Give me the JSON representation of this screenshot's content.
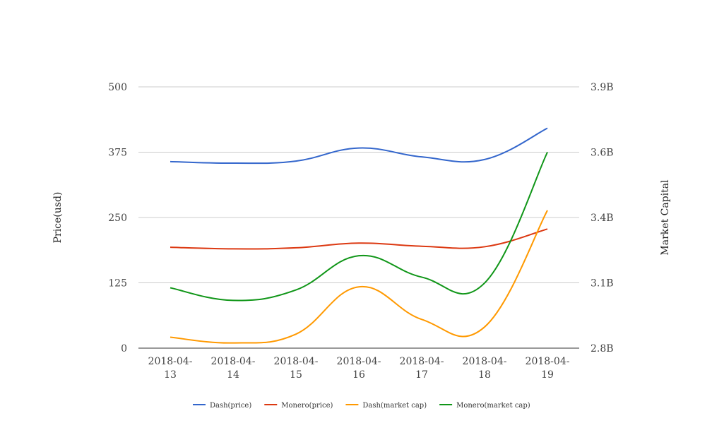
{
  "chart_data": {
    "type": "line",
    "categories": [
      "2018-04-13",
      "2018-04-14",
      "2018-04-15",
      "2018-04-16",
      "2018-04-17",
      "2018-04-18",
      "2018-04-19"
    ],
    "category_lines": [
      [
        "2018-04-",
        "13"
      ],
      [
        "2018-04-",
        "14"
      ],
      [
        "2018-04-",
        "15"
      ],
      [
        "2018-04-",
        "16"
      ],
      [
        "2018-04-",
        "17"
      ],
      [
        "2018-04-",
        "18"
      ],
      [
        "2018-04-",
        "19"
      ]
    ],
    "ylabel": "Price(usd)",
    "ylabel_right": "Market Capital",
    "ylim": [
      0,
      500
    ],
    "yticks": [
      0,
      125,
      250,
      375,
      500
    ],
    "ytick_labels": [
      "0",
      "125",
      "250",
      "375",
      "500"
    ],
    "ylim_right": [
      2.8,
      3.9
    ],
    "yticks_right": [
      2.8,
      3.075,
      3.35,
      3.625,
      3.9
    ],
    "ytick_labels_right": [
      "2.8B",
      "3.1B",
      "3.4B",
      "3.6B",
      "3.9B"
    ],
    "grid": true,
    "legend_position": "bottom",
    "series": [
      {
        "name": "Dash(price)",
        "axis": "left",
        "color": "#3366cc",
        "values": [
          357,
          354,
          358,
          383,
          366,
          361,
          421
        ]
      },
      {
        "name": "Monero(price)",
        "axis": "left",
        "color": "#dc3912",
        "values": [
          193,
          190,
          192,
          201,
          195,
          194,
          228
        ]
      },
      {
        "name": "Dash(market cap)",
        "axis": "right",
        "color": "#ff9900",
        "values": [
          2.846,
          2.822,
          2.859,
          3.058,
          2.921,
          2.889,
          3.38
        ]
      },
      {
        "name": "Monero(market cap)",
        "axis": "right",
        "color": "#109618",
        "values": [
          3.054,
          3.001,
          3.045,
          3.189,
          3.099,
          3.074,
          3.625
        ]
      }
    ]
  }
}
